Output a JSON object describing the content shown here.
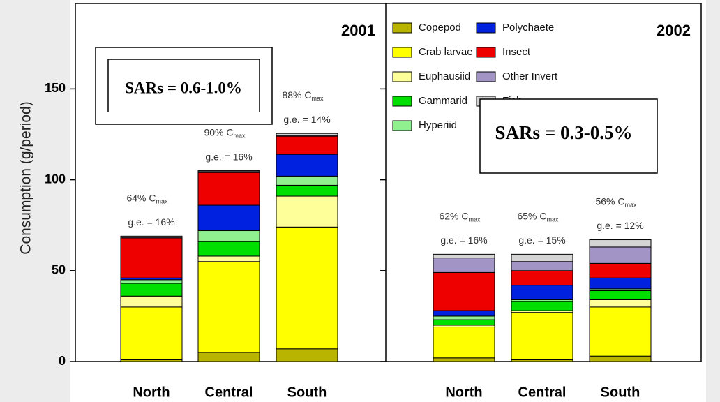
{
  "chart_data": [
    {
      "type": "bar",
      "stacked": true,
      "title": "2001",
      "y_label": "Consumption (g/period)",
      "ylim": [
        0,
        197
      ],
      "yticks": [
        0,
        50,
        100,
        150
      ],
      "categories": [
        "North",
        "Central",
        "South"
      ],
      "series": [
        {
          "name": "Copepod",
          "color": "#b8b400",
          "values": [
            1,
            5,
            7
          ]
        },
        {
          "name": "Crab larvae",
          "color": "#ffff00",
          "values": [
            29,
            50,
            67
          ]
        },
        {
          "name": "Euphausiid",
          "color": "#ffff99",
          "values": [
            6,
            3,
            17
          ]
        },
        {
          "name": "Gammarid",
          "color": "#00e000",
          "values": [
            7,
            8,
            6
          ]
        },
        {
          "name": "Hyperiid",
          "color": "#90f090",
          "values": [
            2,
            6,
            5
          ]
        },
        {
          "name": "Polychaete",
          "color": "#0022e0",
          "values": [
            1,
            14,
            12
          ]
        },
        {
          "name": "Insect",
          "color": "#ee0000",
          "values": [
            22,
            18,
            10
          ]
        },
        {
          "name": "Other Invert",
          "color": "#a394c6",
          "values": [
            0.5,
            0.5,
            0.5
          ]
        },
        {
          "name": "Fish",
          "color": "#d4d4d4",
          "values": [
            0.5,
            0.5,
            1
          ]
        }
      ],
      "bar_notes": [
        {
          "cmax": "64% C",
          "sub": "max",
          "ge": "g.e. = 16%"
        },
        {
          "cmax": "90% C",
          "sub": "max",
          "ge": "g.e. = 16%"
        },
        {
          "cmax": "88% C",
          "sub": "max",
          "ge": "g.e. = 14%"
        }
      ],
      "annotation": "SARs = 0.6-1.0%"
    },
    {
      "type": "bar",
      "stacked": true,
      "title": "2002",
      "categories": [
        "North",
        "Central",
        "South"
      ],
      "series": [
        {
          "values": [
            2,
            1,
            3
          ]
        },
        {
          "values": [
            17,
            26,
            27
          ]
        },
        {
          "values": [
            1,
            1,
            4
          ]
        },
        {
          "values": [
            3,
            5,
            5
          ]
        },
        {
          "values": [
            2,
            1,
            1
          ]
        },
        {
          "values": [
            3,
            8,
            6
          ]
        },
        {
          "values": [
            21,
            8,
            8
          ]
        },
        {
          "values": [
            8,
            5,
            9
          ]
        },
        {
          "values": [
            2,
            4,
            4
          ]
        }
      ],
      "bar_notes": [
        {
          "cmax": "62% C",
          "sub": "max",
          "ge": "g.e. = 16%"
        },
        {
          "cmax": "65% C",
          "sub": "max",
          "ge": "g.e. = 15%"
        },
        {
          "cmax": "56% C",
          "sub": "max",
          "ge": "g.e. = 12%"
        }
      ],
      "annotation": "SARs = 0.3-0.5%"
    }
  ]
}
